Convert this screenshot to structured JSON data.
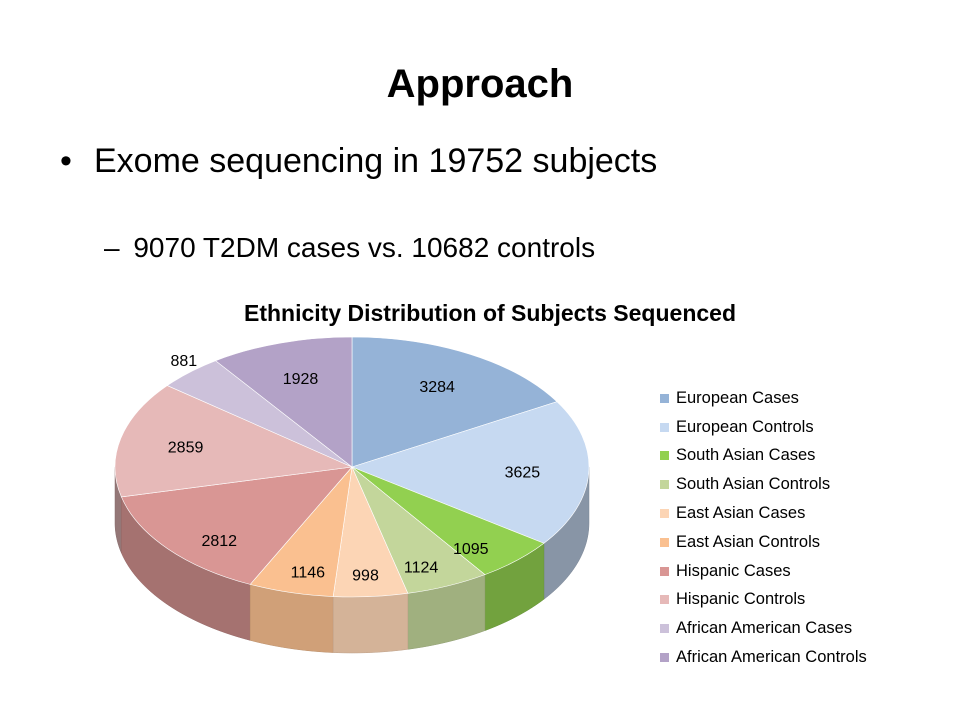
{
  "slide": {
    "title": "Approach",
    "bullet_mark": "•",
    "sub_bullet_mark": "–",
    "bullets": [
      {
        "text": "Exome sequencing in 19752 subjects"
      }
    ],
    "sub_bullets": [
      {
        "text": "9070 T2DM cases vs. 10682 controls"
      }
    ]
  },
  "chart_data": {
    "type": "pie",
    "title": "Ethnicity Distribution of Subjects Sequenced",
    "style": "3d",
    "legend_position": "right",
    "categories": [
      "European Cases",
      "European Controls",
      "South Asian Cases",
      "South Asian Controls",
      "East Asian Cases",
      "East Asian Controls",
      "Hispanic Cases",
      "Hispanic Controls",
      "African American Cases",
      "African American Controls"
    ],
    "values": [
      3284,
      3625,
      1095,
      1124,
      998,
      1146,
      2812,
      2859,
      881,
      1928
    ],
    "colors": [
      "#95b3d7",
      "#c6d9f1",
      "#92d050",
      "#c3d69b",
      "#fcd5b5",
      "#fac090",
      "#d99694",
      "#e6b9b8",
      "#ccc1da",
      "#b3a2c7"
    ]
  }
}
